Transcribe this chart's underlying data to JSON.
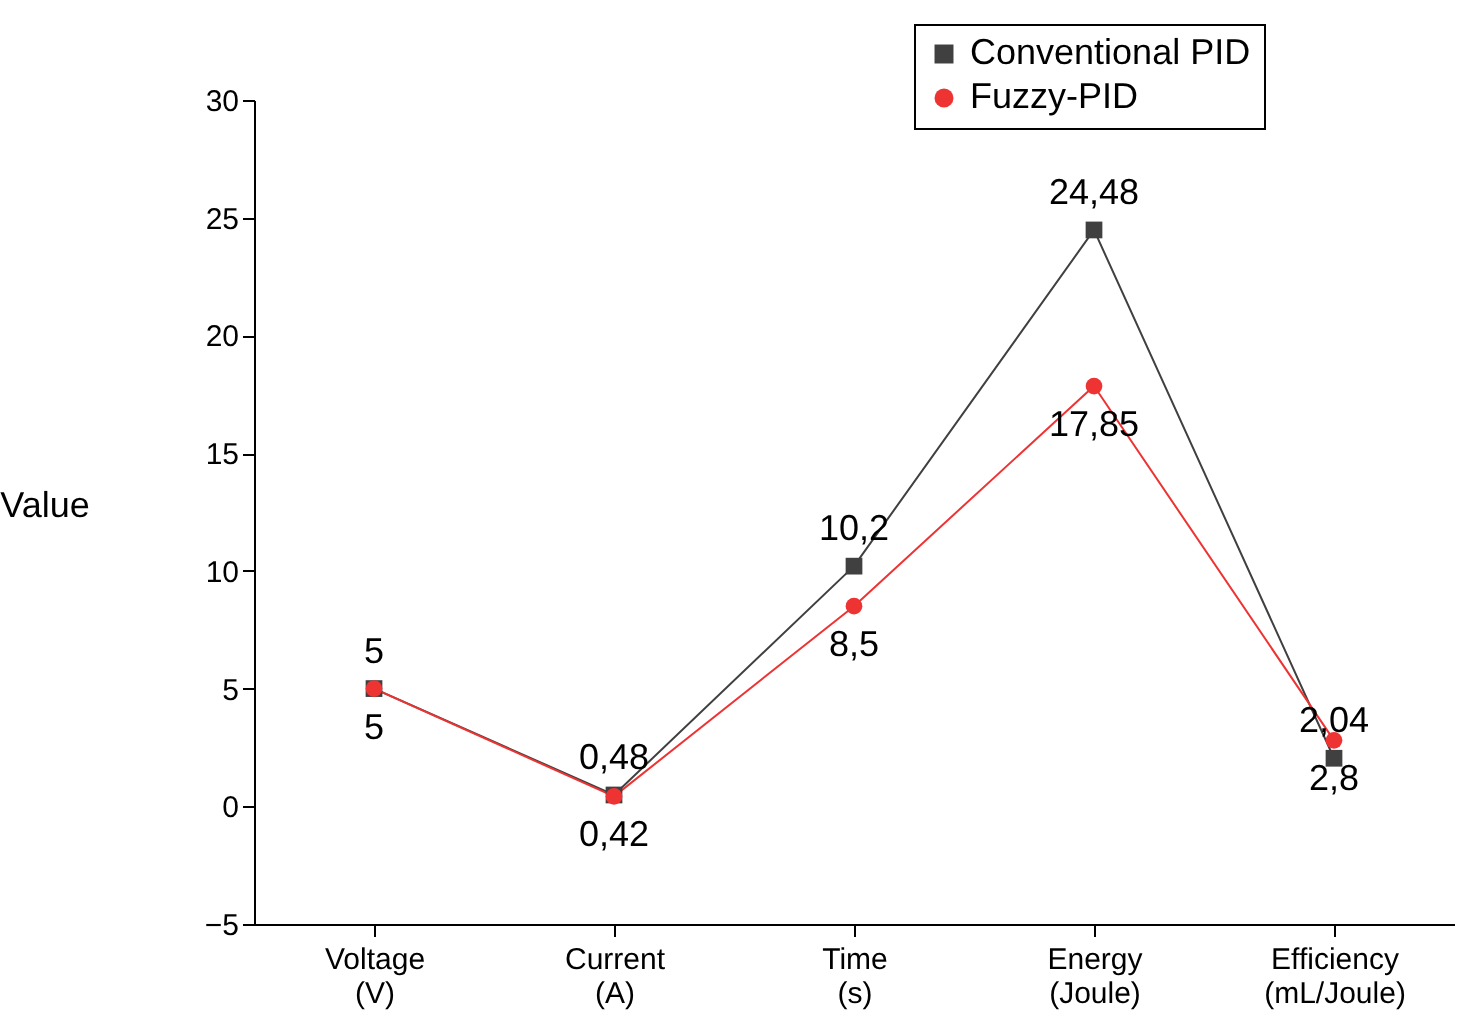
{
  "chart_data": {
    "type": "line",
    "ylabel": "Value",
    "categories": [
      "Voltage\n(V)",
      "Current\n(A)",
      "Time\n(s)",
      "Energy\n(Joule)",
      "Efficiency\n(mL/Joule)"
    ],
    "series": [
      {
        "name": "Conventional PID",
        "color": "#404040",
        "marker": "square",
        "values": [
          5,
          0.48,
          10.2,
          24.48,
          2.04
        ],
        "value_labels": [
          "5",
          "0,48",
          "10,2",
          "24,48",
          "2,04"
        ]
      },
      {
        "name": "Fuzzy-PID",
        "color": "#ee3333",
        "marker": "circle",
        "values": [
          5,
          0.42,
          8.5,
          17.85,
          2.8
        ],
        "value_labels": [
          "5",
          "0,42",
          "8,5",
          "17,85",
          "2,8"
        ]
      }
    ],
    "ylim": [
      -5,
      30
    ],
    "yticks": [
      -5,
      0,
      5,
      10,
      15,
      20,
      25,
      30
    ],
    "grid": false,
    "legend": "top right"
  }
}
